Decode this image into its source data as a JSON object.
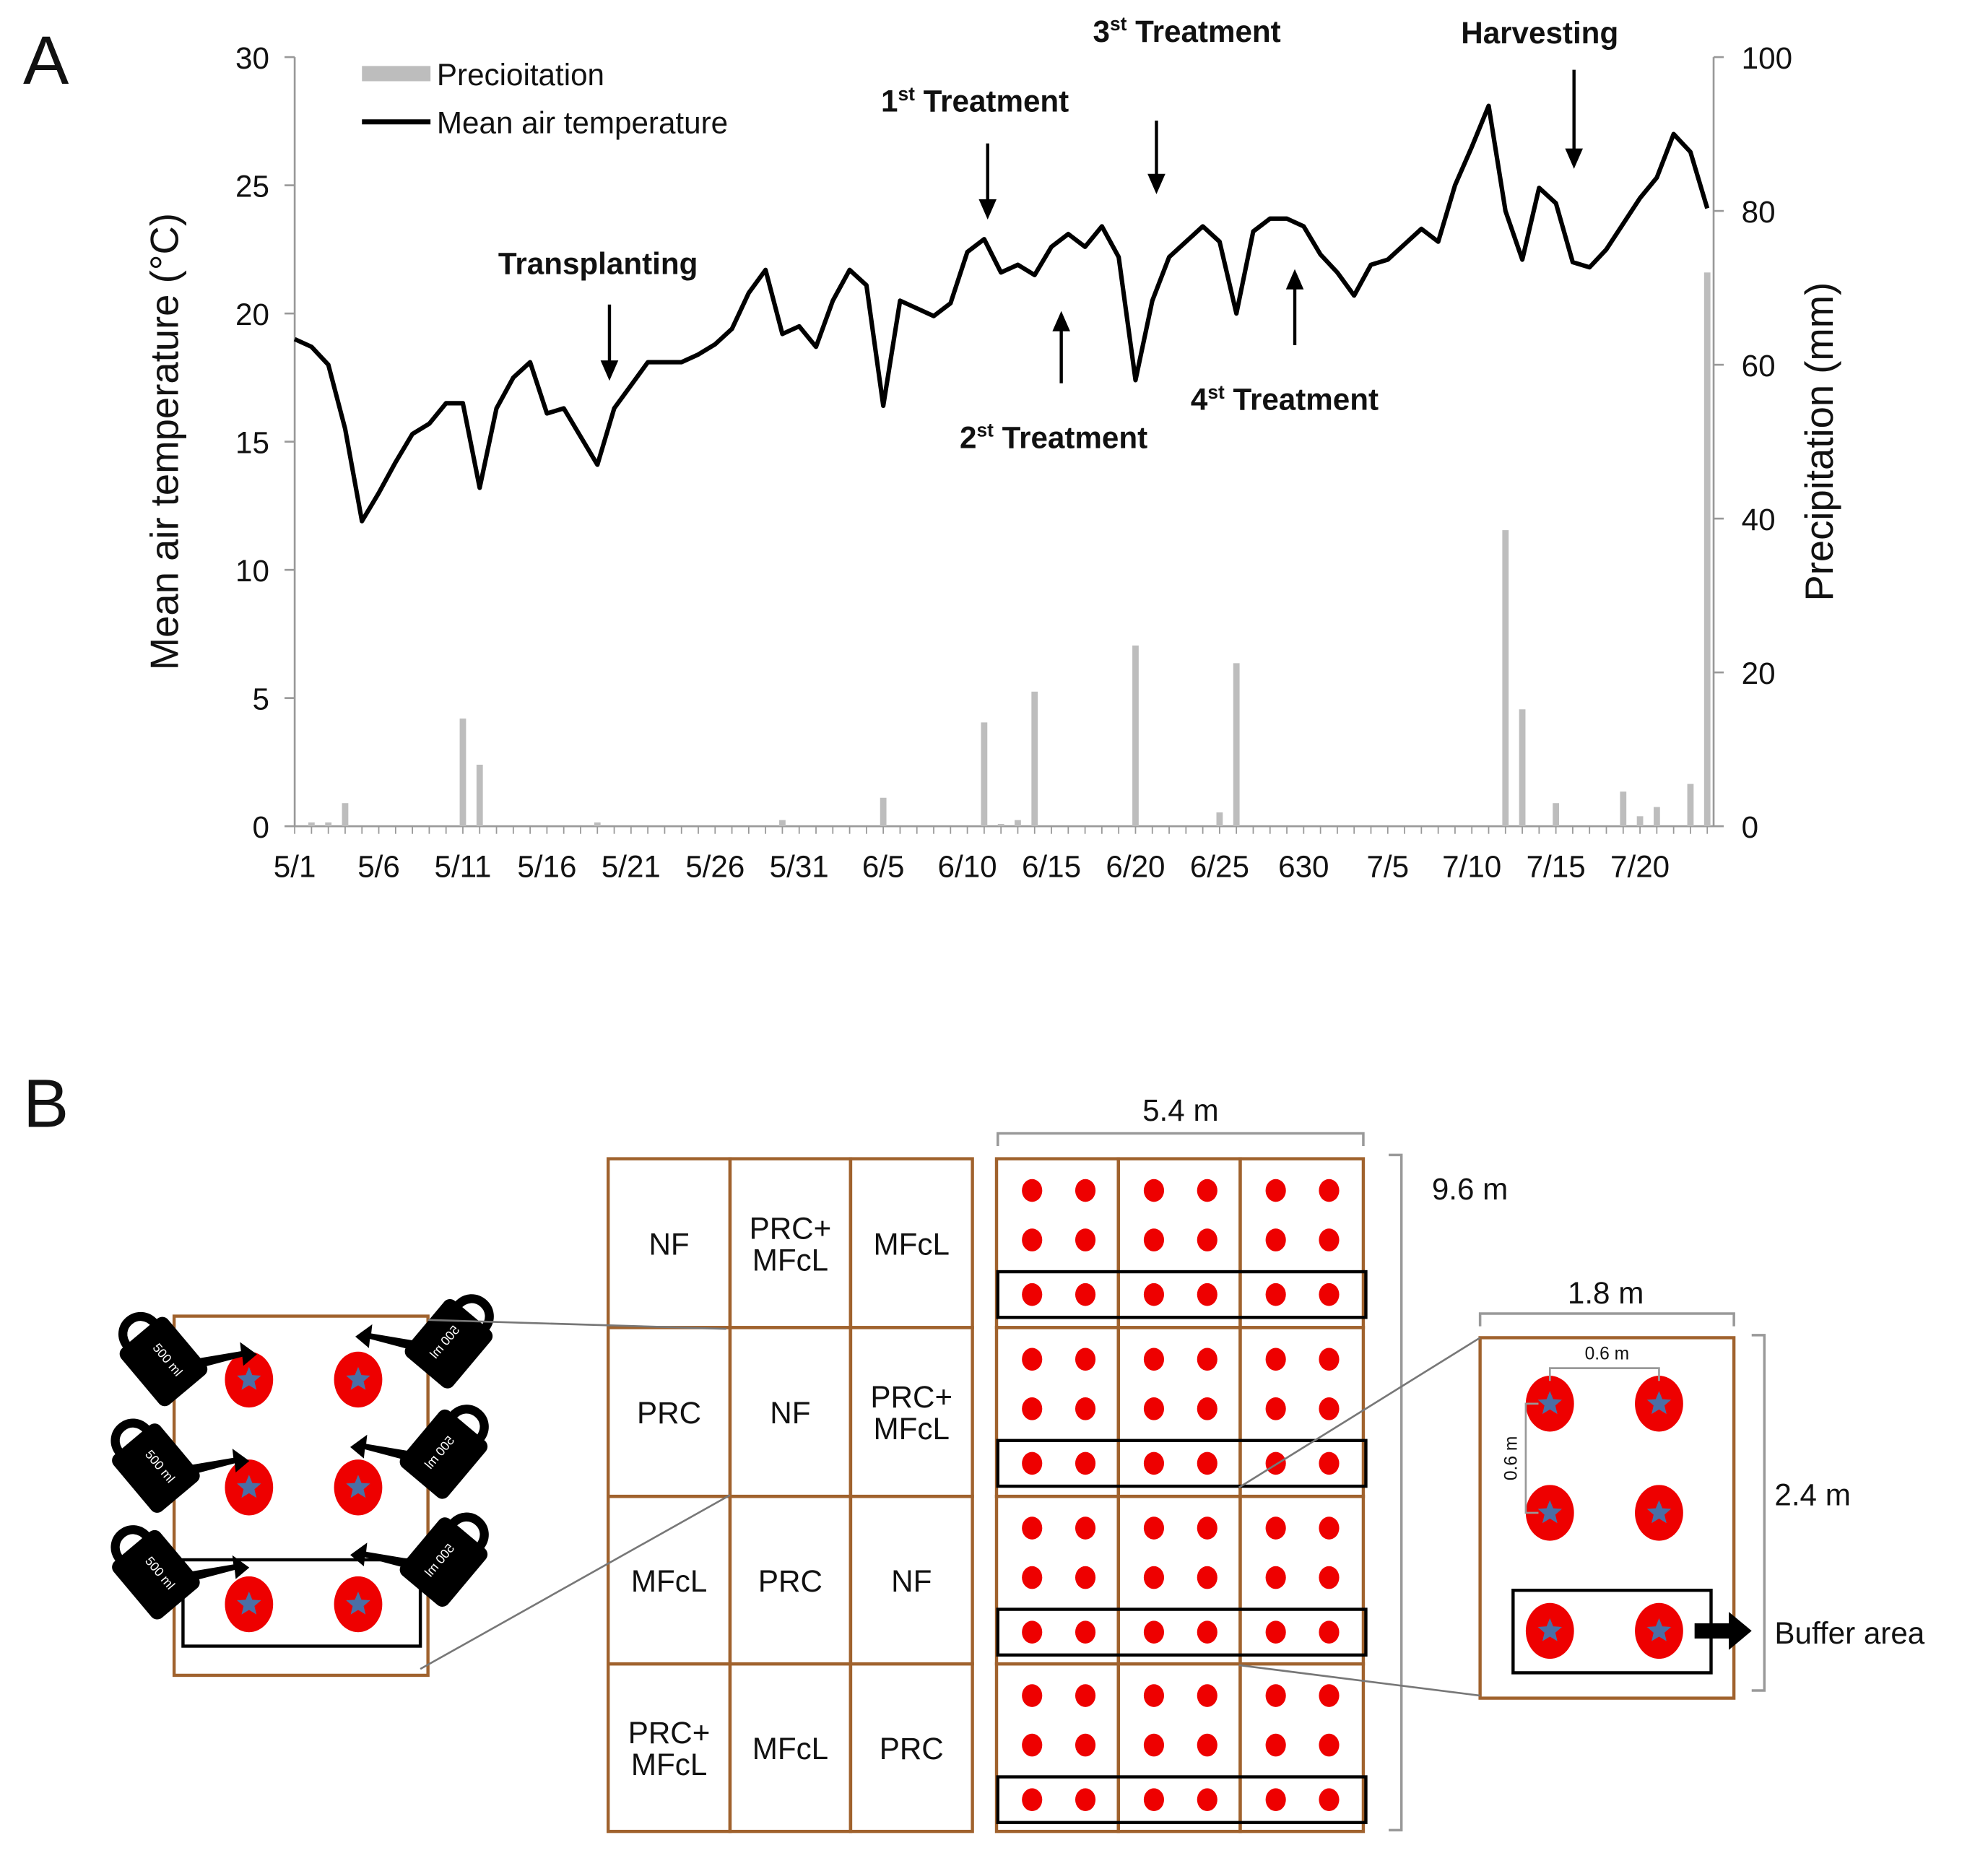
{
  "panel_labels": [
    "A",
    "B"
  ],
  "chart_data": {
    "type": "combo",
    "categories": [
      "5/1",
      null,
      null,
      null,
      null,
      "5/6",
      null,
      null,
      null,
      null,
      "5/11",
      null,
      null,
      null,
      null,
      "5/16",
      null,
      null,
      null,
      null,
      "5/21",
      null,
      null,
      null,
      null,
      "5/26",
      null,
      null,
      null,
      null,
      "5/31",
      null,
      null,
      null,
      null,
      "6/5",
      null,
      null,
      null,
      null,
      "6/10",
      null,
      null,
      null,
      null,
      "6/15",
      null,
      null,
      null,
      null,
      "6/20",
      null,
      null,
      null,
      null,
      "6/25",
      null,
      null,
      null,
      null,
      "630",
      null,
      null,
      null,
      null,
      "7/5",
      null,
      null,
      null,
      null,
      "7/10",
      null,
      null,
      null,
      null,
      "7/15",
      null,
      null,
      null,
      null,
      "7/20",
      null,
      null,
      null,
      null
    ],
    "series": [
      {
        "name": "Precioitation",
        "type": "bar",
        "axis": "y2",
        "color": "#bdbdbd",
        "values": [
          0,
          0.5,
          0.5,
          3,
          0,
          0,
          0,
          0,
          0,
          0,
          14,
          8,
          0,
          0,
          0,
          0,
          0,
          0,
          0.5,
          0,
          0,
          0,
          0,
          0,
          0,
          0,
          0,
          0,
          0,
          0.8,
          0,
          0,
          0,
          0,
          0,
          3.7,
          0,
          0,
          0,
          0,
          0,
          13.5,
          0.3,
          0.8,
          17.5,
          0,
          0,
          0,
          0,
          0,
          23.5,
          0,
          0,
          0,
          0,
          1.8,
          21.2,
          0,
          0,
          0,
          0,
          0,
          0,
          0,
          0,
          0,
          0,
          0,
          0,
          0,
          0,
          0,
          38.5,
          15.2,
          0,
          3,
          0,
          0,
          0,
          4.5,
          1.3,
          2.5,
          0,
          5.5,
          72
        ]
      },
      {
        "name": "Mean air temperature",
        "type": "line",
        "color": "#000000",
        "values": [
          19.0,
          18.7,
          18.0,
          15.5,
          11.9,
          13.0,
          14.2,
          15.3,
          15.7,
          16.5,
          16.5,
          13.2,
          16.3,
          17.5,
          18.1,
          16.1,
          16.3,
          15.2,
          14.1,
          16.3,
          17.2,
          18.1,
          18.1,
          18.1,
          18.4,
          18.8,
          19.4,
          20.8,
          21.7,
          19.2,
          19.5,
          18.7,
          20.5,
          21.7,
          21.1,
          16.4,
          20.5,
          20.2,
          19.9,
          20.4,
          22.4,
          22.9,
          21.6,
          21.9,
          21.5,
          22.6,
          23.1,
          22.6,
          23.4,
          22.2,
          17.4,
          20.5,
          22.2,
          22.8,
          23.4,
          22.8,
          20.0,
          23.2,
          23.7,
          23.7,
          23.4,
          22.3,
          21.6,
          20.7,
          21.9,
          22.1,
          22.7,
          23.3,
          22.8,
          25.0,
          26.5,
          28.1,
          24.0,
          22.1,
          24.9,
          24.3,
          22.0,
          21.8,
          22.5,
          23.5,
          24.5,
          25.3,
          27.0,
          26.3,
          24.1
        ]
      }
    ],
    "y_label": "Mean air temperature (°C)",
    "y2_label": "Precipitation (mm)",
    "ylim": [
      0,
      30
    ],
    "yticks": [
      0,
      5,
      10,
      15,
      20,
      25,
      30
    ],
    "y2lim": [
      0,
      100
    ],
    "y2ticks": [
      0,
      20,
      40,
      60,
      80,
      100
    ],
    "legend": "top-left",
    "grid": false,
    "annotations": [
      {
        "text": "Transplanting"
      },
      {
        "number": "1",
        "sup": "st",
        "text": " Treatment"
      },
      {
        "number": "2",
        "sup": "st",
        "text": " Treatment"
      },
      {
        "number": "3",
        "sup": "st",
        "text": " Treatment"
      },
      {
        "number": "4",
        "sup": "st",
        "text": " Treatment"
      },
      {
        "text": "Harvesting"
      }
    ]
  },
  "layout": {
    "table": {
      "rows": [
        [
          [
            "NF"
          ],
          [
            "PRC+",
            "MFcL"
          ],
          [
            "MFcL"
          ]
        ],
        [
          [
            "PRC"
          ],
          [
            "NF"
          ],
          [
            "PRC+",
            "MFcL"
          ]
        ],
        [
          [
            "MFcL"
          ],
          [
            "PRC"
          ],
          [
            "NF"
          ]
        ],
        [
          [
            "PRC+",
            "MFcL"
          ],
          [
            "MFcL"
          ],
          [
            "PRC"
          ]
        ]
      ]
    },
    "field_width": "5.4 m",
    "field_length": "9.6 m",
    "plot_width": "1.8 m",
    "plot_length": "2.4 m",
    "row_spacing": "0.6 m",
    "plant_spacing": "0.6 m",
    "buffer": "Buffer area",
    "can_volume": "500 ml"
  }
}
